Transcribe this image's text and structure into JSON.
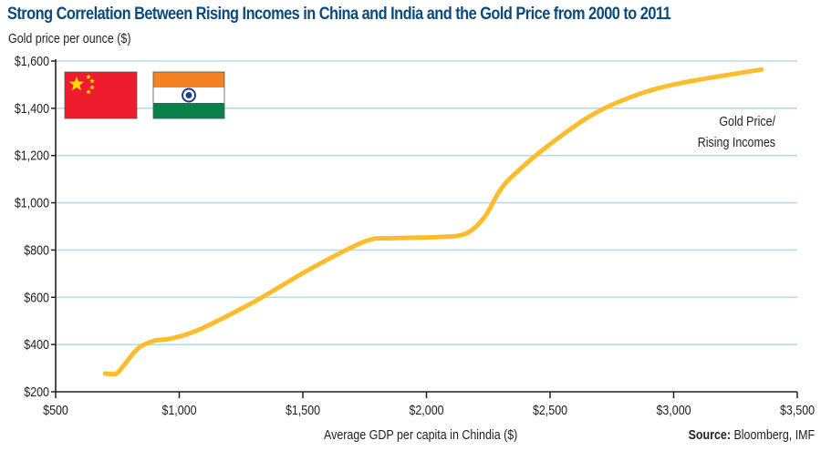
{
  "chart_data": {
    "type": "line",
    "title": "Strong Correlation Between Rising Incomes in China and India and the Gold Price from 2000 to 2011",
    "ylabel": "Gold price per ounce ($)",
    "xlabel": "Average GDP per capita in Chindia ($)",
    "source_label": "Source:",
    "source_text": " Bloomberg, IMF",
    "xlim": [
      500,
      3500
    ],
    "ylim": [
      200,
      1600
    ],
    "x_ticks": [
      500,
      1000,
      1500,
      2000,
      2500,
      3000,
      3500
    ],
    "x_tick_labels": [
      "$500",
      "$1,000",
      "$1,500",
      "$2,000",
      "$2,500",
      "$3,000",
      "$3,500"
    ],
    "y_ticks": [
      200,
      400,
      600,
      800,
      1000,
      1200,
      1400,
      1600
    ],
    "y_tick_labels": [
      "$200",
      "$400",
      "$600",
      "$800",
      "$1,000",
      "$1,200",
      "$1,400",
      "$1,600"
    ],
    "grid": "horizontal",
    "colors": {
      "title": "#0b4a7d",
      "line": "#fbbd2d",
      "grid": "#b5dde8",
      "axis": "#222222"
    },
    "series": [
      {
        "name": "Gold Price/ Rising Incomes",
        "label_lines": [
          "Gold Price/",
          "Rising Incomes"
        ],
        "x": [
          700,
          745,
          775,
          835,
          900,
          960,
          1030,
          1110,
          1310,
          1530,
          1750,
          1860,
          2050,
          2160,
          2235,
          2290,
          2345,
          2490,
          2675,
          2860,
          3045,
          3355
        ],
        "y": [
          277,
          277,
          311,
          385,
          416,
          424,
          443,
          477,
          585,
          720,
          836,
          850,
          855,
          870,
          940,
          1040,
          1110,
          1240,
          1375,
          1460,
          1510,
          1564
        ]
      }
    ],
    "legend_decorations": [
      "china-flag",
      "india-flag"
    ]
  }
}
